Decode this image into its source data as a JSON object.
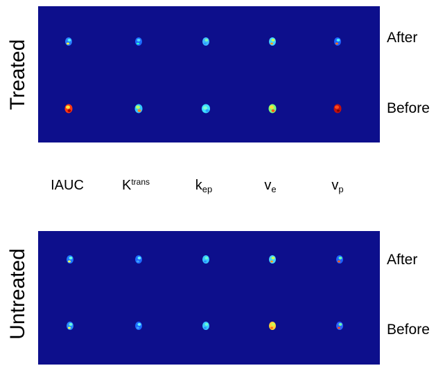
{
  "groups": {
    "treated": "Treated",
    "untreated": "Untreated"
  },
  "rows": {
    "after": "After",
    "before": "Before"
  },
  "columns": {
    "iauc": "IAUC",
    "ktrans_base": "K",
    "ktrans_sup": "trans",
    "kep_base": "k",
    "kep_sub": "ep",
    "ve_base": "v",
    "ve_sub": "e",
    "vp_base": "v",
    "vp_sub": "p"
  },
  "colors": {
    "panel_background": "#0d0f8c",
    "colormap": "jet"
  }
}
